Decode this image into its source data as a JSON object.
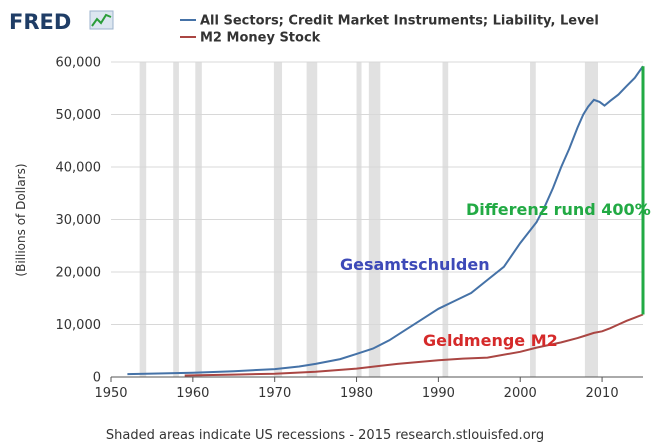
{
  "brand": {
    "name": "FRED"
  },
  "colors": {
    "debt": "#4572a7",
    "m2": "#aa4643",
    "diff": "#22aa44",
    "recession": "#e1e1e1",
    "grid": "#d8d8d8",
    "anno_debt": "#3d4ab8",
    "anno_m2": "#d52a2a"
  },
  "footer": "Shaded areas indicate US recessions - 2015 research.stlouisfed.org",
  "chart_data": {
    "type": "line",
    "title": "",
    "xlabel": "",
    "ylabel": "(Billions of Dollars)",
    "xlim": [
      1950,
      2015
    ],
    "ylim": [
      0,
      60000
    ],
    "x_ticks": [
      1950,
      1960,
      1970,
      1980,
      1990,
      2000,
      2010
    ],
    "y_ticks": [
      0,
      10000,
      20000,
      30000,
      40000,
      50000,
      60000
    ],
    "y_tick_labels": [
      "0",
      "10,000",
      "20,000",
      "30,000",
      "40,000",
      "50,000",
      "60,000"
    ],
    "legend_position": "top",
    "recessions": [
      [
        1953.5,
        1954.3
      ],
      [
        1957.6,
        1958.3
      ],
      [
        1960.3,
        1961.1
      ],
      [
        1969.9,
        1970.9
      ],
      [
        1973.9,
        1975.2
      ],
      [
        1980.0,
        1980.5
      ],
      [
        1981.5,
        1982.9
      ],
      [
        1990.5,
        1991.2
      ],
      [
        2001.2,
        2001.9
      ],
      [
        2007.9,
        2009.5
      ]
    ],
    "series": [
      {
        "name": "All Sectors; Credit Market Instruments; Liability, Level",
        "color": "#4572a7",
        "x": [
          1952,
          1955,
          1960,
          1965,
          1970,
          1973,
          1975,
          1978,
          1980,
          1982,
          1984,
          1986,
          1988,
          1990,
          1992,
          1994,
          1996,
          1998,
          2000,
          2002,
          2003,
          2004,
          2005,
          2006,
          2007,
          2007.7,
          2008.3,
          2009,
          2009.7,
          2010.3,
          2011,
          2012,
          2013,
          2014,
          2015
        ],
        "y": [
          550,
          650,
          800,
          1100,
          1500,
          2000,
          2500,
          3400,
          4400,
          5400,
          7000,
          9000,
          11000,
          13000,
          14500,
          16000,
          18500,
          21000,
          25500,
          29500,
          32500,
          36000,
          40000,
          43500,
          47500,
          50000,
          51500,
          52800,
          52400,
          51700,
          52600,
          53800,
          55400,
          57000,
          59200
        ]
      },
      {
        "name": "M2 Money Stock",
        "color": "#aa4643",
        "x": [
          1959,
          1965,
          1970,
          1975,
          1980,
          1985,
          1990,
          1993,
          1996,
          2000,
          2002,
          2005,
          2007,
          2008,
          2009,
          2010,
          2011,
          2012,
          2013,
          2014,
          2015
        ],
        "y": [
          290,
          460,
          620,
          1000,
          1600,
          2500,
          3200,
          3500,
          3700,
          4800,
          5600,
          6600,
          7400,
          7900,
          8400,
          8700,
          9300,
          10000,
          10700,
          11300,
          11900
        ]
      }
    ],
    "annotations": [
      {
        "text": "Gesamtschulden",
        "color": "#3d4ab8"
      },
      {
        "text": "Geldmenge M2",
        "color": "#d52a2a"
      },
      {
        "text": "Differenz rund 400%",
        "color": "#22aa44"
      }
    ]
  }
}
